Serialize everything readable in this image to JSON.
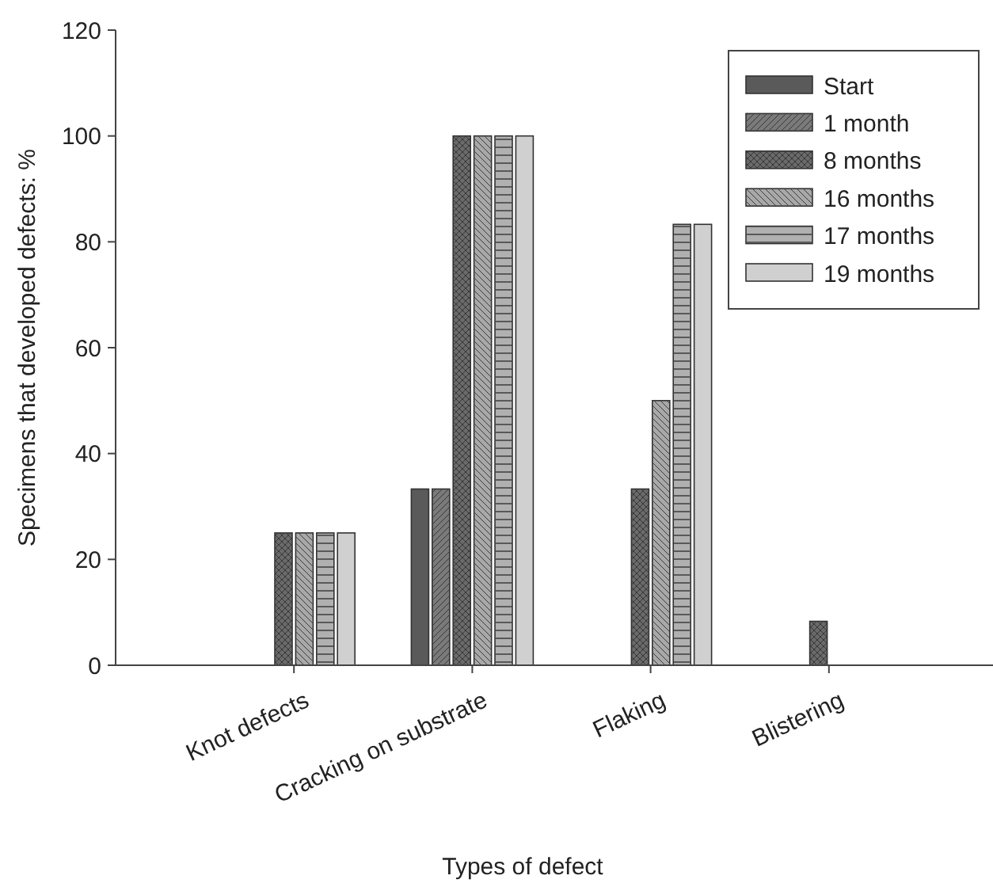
{
  "chart_data": {
    "type": "bar",
    "xlabel": "Types of defect",
    "ylabel": "Specimens that developed defects: %",
    "categories": [
      "Knot defects",
      "Cracking on substrate",
      "Flaking",
      "Blistering"
    ],
    "series": [
      {
        "name": "Start",
        "color": "#5a5a5a",
        "values": [
          0,
          33.3,
          0,
          0
        ]
      },
      {
        "name": "1 month",
        "color": "#7a7a7a",
        "values": [
          0,
          33.3,
          0,
          0
        ]
      },
      {
        "name": "8 months",
        "color": "#6a6a6a",
        "values": [
          25,
          100,
          33.3,
          8.3
        ]
      },
      {
        "name": "16 months",
        "color": "#a8a8a8",
        "values": [
          25,
          100,
          50,
          0
        ]
      },
      {
        "name": "17 months",
        "color": "#b0b0b0",
        "values": [
          25,
          100,
          83.3,
          0
        ]
      },
      {
        "name": "19 months",
        "color": "#d0d0d0",
        "values": [
          25,
          100,
          83.3,
          0
        ]
      }
    ],
    "ylim": [
      0,
      120
    ],
    "yticks": [
      0,
      20,
      40,
      60,
      80,
      100,
      120
    ],
    "grid": false,
    "legend": "top right"
  }
}
